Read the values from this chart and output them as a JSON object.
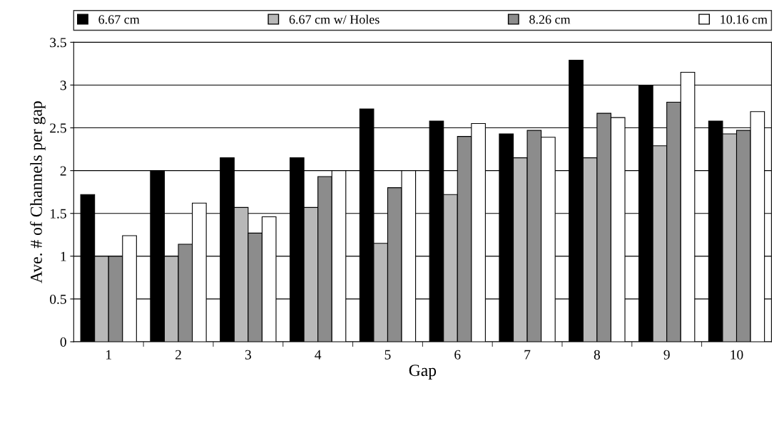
{
  "chart_data": {
    "type": "bar",
    "xlabel": "Gap",
    "ylabel": "Ave. # of Channels per gap",
    "categories": [
      "1",
      "2",
      "3",
      "4",
      "5",
      "6",
      "7",
      "8",
      "9",
      "10"
    ],
    "series": [
      {
        "name": "6.67 cm",
        "color": "#000000",
        "values": [
          1.72,
          2.0,
          2.15,
          2.15,
          2.72,
          2.58,
          2.43,
          3.29,
          3.0,
          2.58
        ]
      },
      {
        "name": "6.67 cm w/ Holes",
        "color": "#b8b8b8",
        "values": [
          1.0,
          1.0,
          1.57,
          1.57,
          1.15,
          1.72,
          2.15,
          2.15,
          2.29,
          2.43
        ]
      },
      {
        "name": "8.26 cm",
        "color": "#8c8c8c",
        "values": [
          1.0,
          1.14,
          1.27,
          1.93,
          1.8,
          2.4,
          2.47,
          2.67,
          2.8,
          2.47
        ]
      },
      {
        "name": "10.16 cm",
        "color": "#ffffff",
        "values": [
          1.24,
          1.62,
          1.46,
          2.0,
          2.0,
          2.55,
          2.39,
          2.62,
          3.15,
          2.69
        ]
      }
    ],
    "ylim": [
      0,
      3.5
    ],
    "yticks": [
      0,
      0.5,
      1,
      1.5,
      2,
      2.5,
      3,
      3.5
    ],
    "grid": "y",
    "legend": "top"
  }
}
